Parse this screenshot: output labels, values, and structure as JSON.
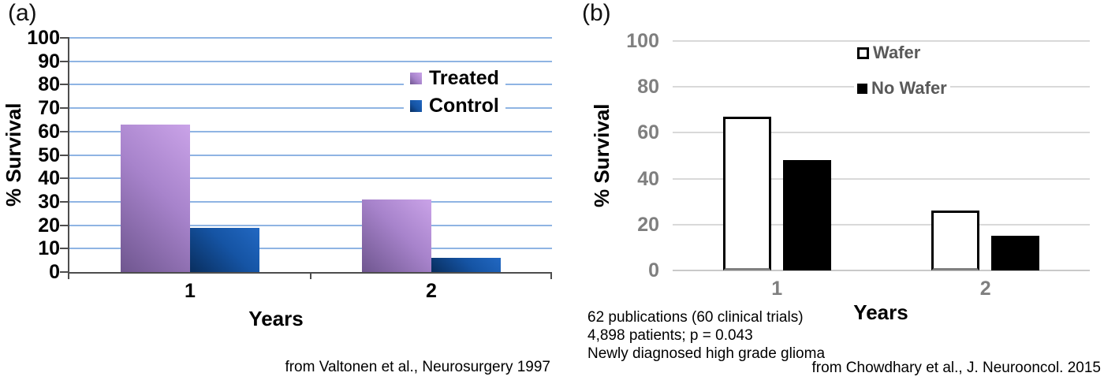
{
  "panels": {
    "a": {
      "label": "(a)",
      "caption": "from Valtonen et al., Neurosurgery 1997"
    },
    "b": {
      "label": "(b)",
      "caption": "from Chowdhary et al., J. Neurooncol. 2015"
    }
  },
  "chart_data": [
    {
      "type": "bar",
      "panel": "a",
      "title": "",
      "xlabel": "Years",
      "ylabel": "% Survival",
      "categories": [
        "1",
        "2"
      ],
      "series": [
        {
          "name": "Treated",
          "values": [
            63,
            31
          ],
          "color": "#a783cb",
          "gradient": [
            "#caa3e8",
            "#6f568f"
          ]
        },
        {
          "name": "Control",
          "values": [
            19,
            6
          ],
          "color": "#1554a4",
          "gradient": [
            "#2268c2",
            "#092e5e"
          ]
        }
      ],
      "ylim": [
        0,
        100
      ],
      "ytick_step": 10,
      "grid": true,
      "gridline_color": "#8fb4e3",
      "axis_color": "#4d4d4d",
      "legend_position": "upper-right"
    },
    {
      "type": "bar",
      "panel": "b",
      "title": "",
      "xlabel": "Years",
      "ylabel": "% Survival",
      "categories": [
        "1",
        "2"
      ],
      "series": [
        {
          "name": "Wafer",
          "values": [
            67,
            26
          ],
          "fill": "#ffffff",
          "border": "#000000"
        },
        {
          "name": "No Wafer",
          "values": [
            48,
            15
          ],
          "fill": "#000000",
          "border": "#000000"
        }
      ],
      "ylim": [
        0,
        100
      ],
      "ytick_step": 20,
      "grid": true,
      "gridline_color": "#d9d9d9",
      "legend_position": "upper-right",
      "annotation_lines": [
        "62 publications (60 clinical trials)",
        "4,898 patients; p = 0.043",
        "Newly diagnosed high grade glioma"
      ]
    }
  ]
}
